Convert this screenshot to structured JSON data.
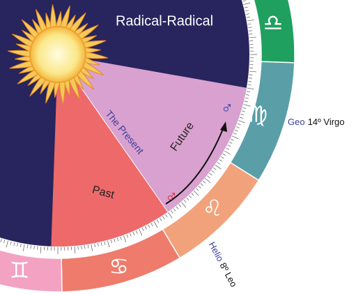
{
  "title": "Radical-Radical",
  "present": "The Present",
  "future": "Future",
  "past": "Past",
  "signs": [
    "♎",
    "♍",
    "♌",
    "♋",
    "♊"
  ],
  "planets": [
    "♂",
    "♂"
  ],
  "geo": {
    "label": "Geo",
    "position": "14º Virgo"
  },
  "helio": {
    "label": "Helio",
    "position": "8º Leo"
  }
}
